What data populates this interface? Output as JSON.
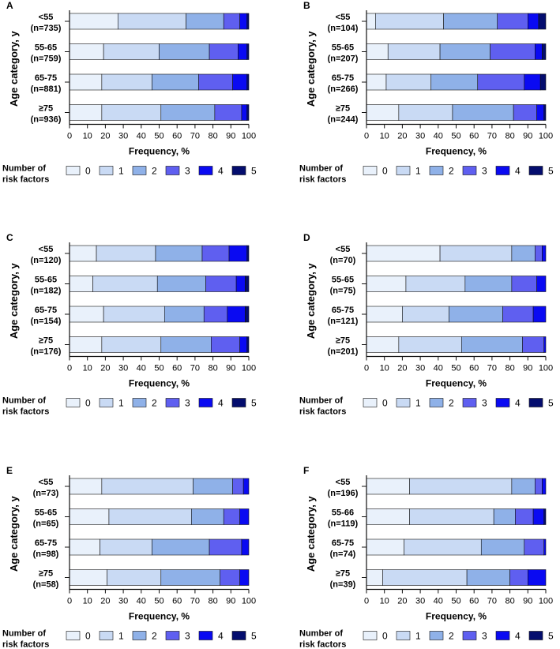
{
  "chart_data": [
    {
      "type": "bar",
      "orientation": "horizontal",
      "stacked": true,
      "panel_label": "A",
      "ylabel": "Age category, y",
      "xlabel": "Frequency, %",
      "xlim": [
        0,
        100
      ],
      "xticks": [
        0,
        10,
        20,
        30,
        40,
        50,
        60,
        70,
        80,
        90,
        100
      ],
      "categories": [
        {
          "name": "<55",
          "n": "(n=735)"
        },
        {
          "name": "55-65",
          "n": "(n=759)"
        },
        {
          "name": "65-75",
          "n": "(n=881)"
        },
        {
          "name": "≥75",
          "n": "(n=936)"
        }
      ],
      "series": [
        {
          "name": "0",
          "values": [
            27,
            19,
            18,
            18
          ]
        },
        {
          "name": "1",
          "values": [
            38,
            31,
            28,
            33
          ]
        },
        {
          "name": "2",
          "values": [
            21,
            28,
            26,
            30
          ]
        },
        {
          "name": "3",
          "values": [
            9,
            16,
            19,
            15
          ]
        },
        {
          "name": "4",
          "values": [
            4,
            5,
            8,
            3
          ]
        },
        {
          "name": "5",
          "values": [
            1,
            1,
            1,
            1
          ]
        }
      ],
      "legend_title": [
        "Number of",
        "risk factors"
      ]
    },
    {
      "type": "bar",
      "orientation": "horizontal",
      "stacked": true,
      "panel_label": "B",
      "ylabel": "Age category, y",
      "xlabel": "Frequency, %",
      "xlim": [
        0,
        100
      ],
      "xticks": [
        0,
        10,
        20,
        30,
        40,
        50,
        60,
        70,
        80,
        90,
        100
      ],
      "categories": [
        {
          "name": "<55",
          "n": "(n=104)"
        },
        {
          "name": "55-65",
          "n": "(n=207)"
        },
        {
          "name": "65-75",
          "n": "(n=266)"
        },
        {
          "name": "≥75",
          "n": "(n=244)"
        }
      ],
      "series": [
        {
          "name": "0",
          "values": [
            5,
            12,
            11,
            18
          ]
        },
        {
          "name": "1",
          "values": [
            38,
            29,
            25,
            30
          ]
        },
        {
          "name": "2",
          "values": [
            30,
            28,
            26,
            34
          ]
        },
        {
          "name": "3",
          "values": [
            17,
            25,
            26,
            13
          ]
        },
        {
          "name": "4",
          "values": [
            6,
            4,
            9,
            4
          ]
        },
        {
          "name": "5",
          "values": [
            4,
            2,
            3,
            1
          ]
        }
      ],
      "legend_title": [
        "Number of",
        "risk factors"
      ]
    },
    {
      "type": "bar",
      "orientation": "horizontal",
      "stacked": true,
      "panel_label": "C",
      "ylabel": "Age category, y",
      "xlabel": "Frequency, %",
      "xlim": [
        0,
        100
      ],
      "xticks": [
        0,
        10,
        20,
        30,
        40,
        50,
        60,
        70,
        80,
        90,
        100
      ],
      "categories": [
        {
          "name": "<55",
          "n": "(n=120)"
        },
        {
          "name": "55-65",
          "n": "(n=182)"
        },
        {
          "name": "65-75",
          "n": "(n=154)"
        },
        {
          "name": "≥75",
          "n": "(n=176)"
        }
      ],
      "series": [
        {
          "name": "0",
          "values": [
            15,
            13,
            19,
            18
          ]
        },
        {
          "name": "1",
          "values": [
            33,
            36,
            34,
            33
          ]
        },
        {
          "name": "2",
          "values": [
            26,
            27,
            22,
            28
          ]
        },
        {
          "name": "3",
          "values": [
            15,
            17,
            13,
            16
          ]
        },
        {
          "name": "4",
          "values": [
            10,
            5,
            10,
            4
          ]
        },
        {
          "name": "5",
          "values": [
            1,
            2,
            2,
            1
          ]
        }
      ],
      "legend_title": [
        "Number of",
        "risk factors"
      ]
    },
    {
      "type": "bar",
      "orientation": "horizontal",
      "stacked": true,
      "panel_label": "D",
      "ylabel": "Age category, y",
      "xlabel": "Frequency, %",
      "xlim": [
        0,
        100
      ],
      "xticks": [
        0,
        10,
        20,
        30,
        40,
        50,
        60,
        70,
        80,
        90,
        100
      ],
      "categories": [
        {
          "name": "<55",
          "n": "(n=70)"
        },
        {
          "name": "55-65",
          "n": "(n=75)"
        },
        {
          "name": "65-75",
          "n": "(n=121)"
        },
        {
          "name": "≥75",
          "n": "(n=201)"
        }
      ],
      "series": [
        {
          "name": "0",
          "values": [
            41,
            22,
            20,
            18
          ]
        },
        {
          "name": "1",
          "values": [
            40,
            33,
            26,
            35
          ]
        },
        {
          "name": "2",
          "values": [
            13,
            26,
            30,
            34
          ]
        },
        {
          "name": "3",
          "values": [
            4,
            14,
            17,
            12
          ]
        },
        {
          "name": "4",
          "values": [
            2,
            5,
            7,
            1
          ]
        },
        {
          "name": "5",
          "values": [
            0,
            0,
            0,
            0
          ]
        }
      ],
      "legend_title": [
        "Number of",
        "risk factors"
      ]
    },
    {
      "type": "bar",
      "orientation": "horizontal",
      "stacked": true,
      "panel_label": "E",
      "ylabel": "Age category, y",
      "xlabel": "Frequency, %",
      "xlim": [
        0,
        100
      ],
      "xticks": [
        0,
        10,
        20,
        30,
        40,
        50,
        60,
        70,
        80,
        90,
        100
      ],
      "categories": [
        {
          "name": "<55",
          "n": "(n=73)"
        },
        {
          "name": "55-65",
          "n": "(n=65)"
        },
        {
          "name": "65-75",
          "n": "(n=98)"
        },
        {
          "name": "≥75",
          "n": "(n=58)"
        }
      ],
      "series": [
        {
          "name": "0",
          "values": [
            18,
            22,
            17,
            21
          ]
        },
        {
          "name": "1",
          "values": [
            51,
            46,
            29,
            30
          ]
        },
        {
          "name": "2",
          "values": [
            22,
            18,
            32,
            33
          ]
        },
        {
          "name": "3",
          "values": [
            6,
            9,
            18,
            11
          ]
        },
        {
          "name": "4",
          "values": [
            3,
            5,
            4,
            5
          ]
        },
        {
          "name": "5",
          "values": [
            0,
            0,
            0,
            0
          ]
        }
      ],
      "legend_title": [
        "Number of",
        "risk factors"
      ]
    },
    {
      "type": "bar",
      "orientation": "horizontal",
      "stacked": true,
      "panel_label": "F",
      "ylabel": "Age category, y",
      "xlabel": "Frequency, %",
      "xlim": [
        0,
        100
      ],
      "xticks": [
        0,
        10,
        20,
        30,
        40,
        50,
        60,
        70,
        80,
        90,
        100
      ],
      "categories": [
        {
          "name": "<55",
          "n": "(n=196)"
        },
        {
          "name": "55-66",
          "n": "(n=119)"
        },
        {
          "name": "65-75",
          "n": "(n=74)"
        },
        {
          "name": "≥75",
          "n": "(n=39)"
        }
      ],
      "series": [
        {
          "name": "0",
          "values": [
            24,
            24,
            21,
            9
          ]
        },
        {
          "name": "1",
          "values": [
            57,
            47,
            43,
            47
          ]
        },
        {
          "name": "2",
          "values": [
            13,
            12,
            24,
            24
          ]
        },
        {
          "name": "3",
          "values": [
            4,
            10,
            11,
            10
          ]
        },
        {
          "name": "4",
          "values": [
            2,
            6,
            1,
            10
          ]
        },
        {
          "name": "5",
          "values": [
            0,
            1,
            0,
            0
          ]
        }
      ],
      "legend_title": [
        "Number of",
        "risk factors"
      ]
    }
  ],
  "colors": {
    "series": [
      "#e9f1fb",
      "#c9daf4",
      "#8fb1e8",
      "#5f5ff0",
      "#0a0af2",
      "#040d6e"
    ],
    "stroke": "#111111"
  }
}
